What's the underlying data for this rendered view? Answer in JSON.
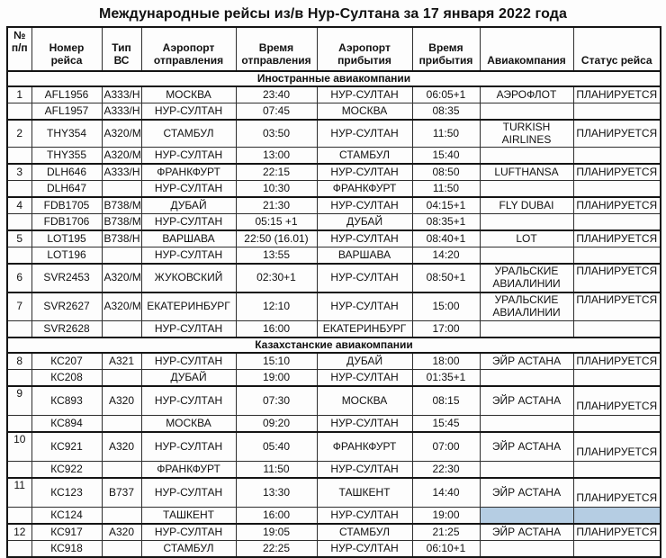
{
  "title": "Международные рейсы из/в Нур-Султана за 17 января 2022 года",
  "colors": {
    "highlight_cell": "#b5cde3",
    "border": "#141414",
    "text": "#111111",
    "background": "#fdfdfd"
  },
  "table": {
    "columns": [
      "№\nп/п",
      "Номер\nрейса",
      "Тип ВС",
      "Аэропорт\nотправления",
      "Время\nотправления",
      "Аэропорт\nприбытия",
      "Время\nприбытия",
      "Авиакомпания",
      "Статус рейса"
    ],
    "sections": [
      {
        "label": "Иностранные авиакомпании",
        "rows": [
          {
            "num": "1",
            "flight": "AFL1956",
            "type": "A333/H",
            "from": "МОСКВА",
            "dep": "23:40",
            "to": "НУР-СУЛТАН",
            "arr": "06:05+1",
            "airline": "АЭРОФЛОТ",
            "status": "ПЛАНИРУЕТСЯ"
          },
          {
            "num": "",
            "flight": "AFL1957",
            "type": "A333/H",
            "from": "НУР-СУЛТАН",
            "dep": "07:45",
            "to": "МОСКВА",
            "arr": "08:35",
            "airline": "",
            "status": ""
          },
          {
            "num": "2",
            "flight": "THY354",
            "type": "A320/M",
            "from": "СТАМБУЛ",
            "dep": "03:50",
            "to": "НУР-СУЛТАН",
            "arr": "11:50",
            "airline": "TURKISH\nAIRLINES",
            "status": "ПЛАНИРУЕТСЯ",
            "tall": true
          },
          {
            "num": "",
            "flight": "THY355",
            "type": "A320/M",
            "from": "НУР-СУЛТАН",
            "dep": "13:00",
            "to": "СТАМБУЛ",
            "arr": "15:40",
            "airline": "",
            "status": ""
          },
          {
            "num": "3",
            "flight": "DLH646",
            "type": "A333/H",
            "from": "ФРАНКФУРТ",
            "dep": "22:15",
            "to": "НУР-СУЛТАН",
            "arr": "08:50",
            "airline": "LUFTHANSA",
            "status": "ПЛАНИРУЕТСЯ"
          },
          {
            "num": "",
            "flight": "DLH647",
            "type": "",
            "from": "НУР-СУЛТАН",
            "dep": "10:30",
            "to": "ФРАНКФУРТ",
            "arr": "11:50",
            "airline": "",
            "status": ""
          },
          {
            "num": "4",
            "flight": "FDB1705",
            "type": "B738/M",
            "from": "ДУБАЙ",
            "dep": "21:30",
            "to": "НУР-СУЛТАН",
            "arr": "04:15+1",
            "airline": "FLY DUBAI",
            "status": "ПЛАНИРУЕТСЯ"
          },
          {
            "num": "",
            "flight": "FDB1706",
            "type": "B738/M",
            "from": "НУР-СУЛТАН",
            "dep": "05:15 +1",
            "to": "ДУБАЙ",
            "arr": "08:35+1",
            "airline": "",
            "status": ""
          },
          {
            "num": "5",
            "flight": "LOT195",
            "type": "B738/H",
            "from": "ВАРШАВА",
            "dep": "22:50 (16.01)",
            "to": "НУР-СУЛТАН",
            "arr": "08:40+1",
            "airline": "LOT",
            "status": "ПЛАНИРУЕТСЯ"
          },
          {
            "num": "",
            "flight": "LOT196",
            "type": "",
            "from": "НУР-СУЛТАН",
            "dep": "13:55",
            "to": "ВАРШАВА",
            "arr": "14:20",
            "airline": "",
            "status": ""
          },
          {
            "num": "6",
            "flight": "SVR2453",
            "type": "A320/M",
            "from": "ЖУКОВСКИЙ",
            "dep": "02:30+1",
            "to": "НУР-СУЛТАН",
            "arr": "08:50+1",
            "airline": "УРАЛЬСКИЕ\nАВИАЛИНИИ",
            "status": "ПЛАНИРУЕТСЯ",
            "tall": true,
            "statusAlign": "top"
          },
          {
            "num": "7",
            "flight": "SVR2627",
            "type": "A320/M",
            "from": "ЕКАТЕРИНБУРГ",
            "dep": "12:10",
            "to": "НУР-СУЛТАН",
            "arr": "15:00",
            "airline": "УРАЛЬСКИЕ\nАВИАЛИНИИ",
            "status": "ПЛАНИРУЕТСЯ",
            "tall": true,
            "statusAlign": "top"
          },
          {
            "num": "",
            "flight": "SVR2628",
            "type": "",
            "from": "НУР-СУЛТАН",
            "dep": "16:00",
            "to": "ЕКАТЕРИНБУРГ",
            "arr": "17:00",
            "airline": "",
            "status": ""
          }
        ]
      },
      {
        "label": "Казахстанские авиакомпании",
        "rows": [
          {
            "num": "8",
            "flight": "КС207",
            "type": "А321",
            "from": "НУР-СУЛТАН",
            "dep": "15:10",
            "to": "ДУБАЙ",
            "arr": "18:00",
            "airline": "ЭЙР АСТАНА",
            "status": "ПЛАНИРУЕТСЯ"
          },
          {
            "num": "",
            "flight": "КС208",
            "type": "",
            "from": "ДУБАЙ",
            "dep": "19:00",
            "to": "НУР-СУЛТАН",
            "arr": "01:35+1",
            "airline": "",
            "status": ""
          },
          {
            "num": "9",
            "flight": "КС893",
            "type": "А320",
            "from": "НУР-СУЛТАН",
            "dep": "07:30",
            "to": "МОСКВА",
            "arr": "08:15",
            "airline": "ЭЙР АСТАНА",
            "status": "ПЛАНИРУЕТСЯ",
            "tall": true,
            "numAlign": "top",
            "statusAlign": "bottom"
          },
          {
            "num": "",
            "flight": "КС894",
            "type": "",
            "from": "МОСКВА",
            "dep": "09:20",
            "to": "НУР-СУЛТАН",
            "arr": "15:45",
            "airline": "",
            "status": ""
          },
          {
            "num": "10",
            "flight": "КС921",
            "type": "А320",
            "from": "НУР-СУЛТАН",
            "dep": "05:40",
            "to": "ФРАНКФУРТ",
            "arr": "07:00",
            "airline": "ЭЙР АСТАНА",
            "status": "ПЛАНИРУЕТСЯ",
            "tall": true,
            "numAlign": "top",
            "statusAlign": "bottom"
          },
          {
            "num": "",
            "flight": "КС922",
            "type": "",
            "from": "ФРАНКФУРТ",
            "dep": "11:50",
            "to": "НУР-СУЛТАН",
            "arr": "22:30",
            "airline": "",
            "status": ""
          },
          {
            "num": "11",
            "flight": "КС123",
            "type": "В737",
            "from": "НУР-СУЛТАН",
            "dep": "13:30",
            "to": "ТАШКЕНТ",
            "arr": "14:40",
            "airline": "ЭЙР АСТАНА",
            "status": "ПЛАНИРУЕТСЯ",
            "tall": true,
            "numAlign": "top",
            "statusAlign": "bottom"
          },
          {
            "num": "",
            "flight": "КС124",
            "type": "",
            "from": "ТАШКЕНТ",
            "dep": "16:00",
            "to": "НУР-СУЛТАН",
            "arr": "19:00",
            "airline": "",
            "status": "",
            "highlight": true
          },
          {
            "num": "12",
            "flight": "КС917",
            "type": "А320",
            "from": "НУР-СУЛТАН",
            "dep": "19:05",
            "to": "СТАМБУЛ",
            "arr": "21:25",
            "airline": "ЭЙР АСТАНА",
            "status": "ПЛАНИРУЕТСЯ"
          },
          {
            "num": "",
            "flight": "КС918",
            "type": "",
            "from": "СТАМБУЛ",
            "dep": "22:25",
            "to": "НУР-СУЛТАН",
            "arr": "06:10+1",
            "airline": "",
            "status": ""
          }
        ]
      }
    ]
  }
}
